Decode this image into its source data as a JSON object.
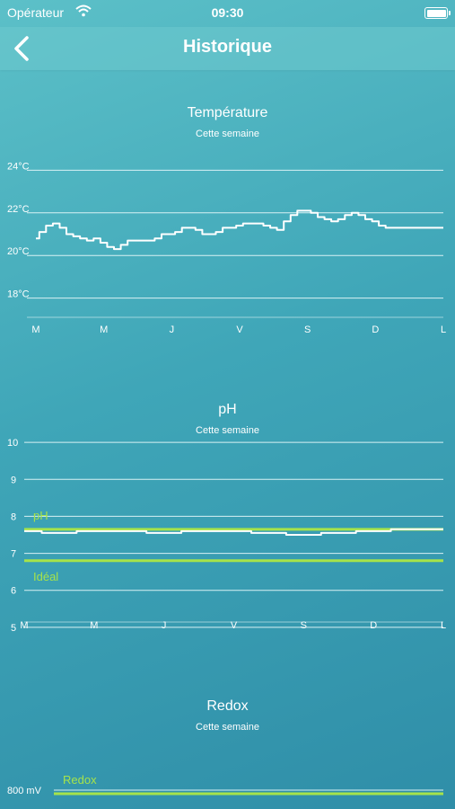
{
  "status_bar": {
    "carrier": "Opérateur",
    "time": "09:30"
  },
  "nav": {
    "title": "Historique"
  },
  "colors": {
    "line": "#ffffff",
    "highlight": "#a6e34a",
    "grid": "#d8f1f4"
  },
  "chart_data": [
    {
      "type": "line",
      "title": "Température",
      "subtitle": "Cette semaine",
      "categories": [
        "M",
        "M",
        "J",
        "V",
        "S",
        "D",
        "L"
      ],
      "y_ticks": [
        {
          "value": 18,
          "label": "18°C"
        },
        {
          "value": 20,
          "label": "20°C"
        },
        {
          "value": 22,
          "label": "22°C"
        },
        {
          "value": 24,
          "label": "24°C"
        }
      ],
      "ylim": [
        17.1,
        24.9
      ],
      "series": [
        {
          "x": [
            0,
            0.1,
            0.2,
            0.3,
            0.4,
            0.5,
            0.6,
            0.7,
            0.8,
            0.9,
            1.0,
            1.1,
            1.2,
            1.3,
            1.4,
            1.5,
            1.6,
            1.7,
            1.8,
            1.9,
            2.0,
            2.1,
            2.2,
            2.3,
            2.4,
            2.5,
            2.6,
            2.7,
            2.8,
            2.9,
            3.0,
            3.1,
            3.2,
            3.3,
            3.4,
            3.5,
            3.6,
            3.7,
            3.8,
            3.9,
            4.0,
            4.1,
            4.2,
            4.3,
            4.4,
            4.5,
            4.6,
            4.7,
            4.8,
            4.9,
            5.0,
            5.1,
            5.2,
            5.3,
            5.4,
            5.5,
            5.6,
            5.7,
            5.8,
            5.9,
            6.0
          ],
          "y": [
            20.8,
            21.1,
            21.4,
            21.5,
            21.3,
            21.0,
            20.9,
            20.8,
            20.7,
            20.8,
            20.6,
            20.4,
            20.3,
            20.5,
            20.7,
            20.7,
            20.7,
            20.7,
            20.8,
            21.0,
            21.0,
            21.1,
            21.3,
            21.3,
            21.2,
            21.0,
            21.0,
            21.1,
            21.3,
            21.3,
            21.4,
            21.5,
            21.5,
            21.5,
            21.4,
            21.3,
            21.2,
            21.6,
            21.9,
            22.1,
            22.1,
            22.0,
            21.8,
            21.7,
            21.6,
            21.7,
            21.9,
            22.0,
            21.9,
            21.7,
            21.6,
            21.4,
            21.3,
            21.3,
            21.3,
            21.3,
            21.3,
            21.3,
            21.3,
            21.3,
            21.3
          ]
        }
      ]
    },
    {
      "type": "line",
      "title": "pH",
      "subtitle": "Cette semaine",
      "categories": [
        "M",
        "M",
        "J",
        "V",
        "S",
        "D",
        "L"
      ],
      "y_ticks": [
        {
          "value": 5,
          "label": "5"
        },
        {
          "value": 6,
          "label": "6"
        },
        {
          "value": 7,
          "label": "7"
        },
        {
          "value": 8,
          "label": "8"
        },
        {
          "value": 9,
          "label": "9"
        },
        {
          "value": 10,
          "label": "10"
        }
      ],
      "ylim": [
        4.9,
        10.1
      ],
      "series": [
        {
          "x": [
            0,
            0.5,
            1.0,
            1.5,
            2.0,
            2.5,
            3.0,
            3.5,
            4.0,
            4.5,
            5.0,
            5.5,
            6.0
          ],
          "y": [
            7.6,
            7.55,
            7.6,
            7.6,
            7.55,
            7.6,
            7.6,
            7.55,
            7.5,
            7.55,
            7.6,
            7.65,
            7.65
          ]
        }
      ],
      "reference_lines": [
        {
          "name": "pH",
          "value": 7.65
        },
        {
          "name": "Idéal",
          "value": 6.8
        }
      ]
    },
    {
      "type": "line",
      "title": "Redox",
      "subtitle": "Cette semaine",
      "y_ticks": [
        {
          "value": 800,
          "label": "800 mV"
        }
      ],
      "reference_lines": [
        {
          "name": "Redox",
          "value": 800
        }
      ]
    }
  ]
}
